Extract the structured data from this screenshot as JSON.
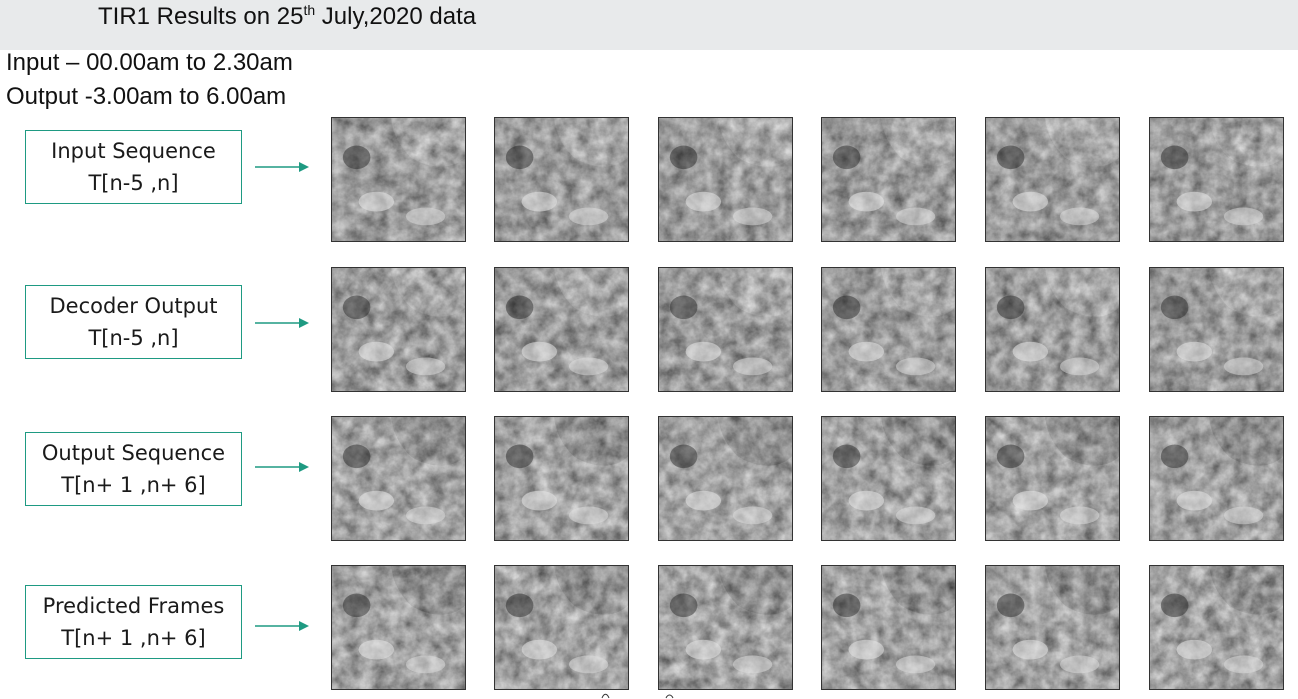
{
  "title": {
    "prefix": "TIR1 Results on 25",
    "sup": "th",
    "suffix": " July,2020 data"
  },
  "info": {
    "input_line": "Input – 00.00am to 2.30am",
    "output_line": "Output -3.00am to 6.00am"
  },
  "rows": [
    {
      "label_line1": "Input Sequence",
      "label_line2": "T[n-5 ,n]",
      "frame_names": [
        "input-frame-1",
        "input-frame-2",
        "input-frame-3",
        "input-frame-4",
        "input-frame-5",
        "input-frame-6"
      ]
    },
    {
      "label_line1": "Decoder Output",
      "label_line2": "T[n-5 ,n]",
      "frame_names": [
        "decoder-frame-1",
        "decoder-frame-2",
        "decoder-frame-3",
        "decoder-frame-4",
        "decoder-frame-5",
        "decoder-frame-6"
      ]
    },
    {
      "label_line1": "Output Sequence",
      "label_line2": "T[n+ 1 ,n+ 6]",
      "frame_names": [
        "output-frame-1",
        "output-frame-2",
        "output-frame-3",
        "output-frame-4",
        "output-frame-5",
        "output-frame-6"
      ]
    },
    {
      "label_line1": "Predicted Frames",
      "label_line2": "T[n+ 1 ,n+ 6]",
      "frame_names": [
        "predicted-frame-1",
        "predicted-frame-2",
        "predicted-frame-3",
        "predicted-frame-4",
        "predicted-frame-5",
        "predicted-frame-6"
      ]
    }
  ],
  "colors": {
    "accent": "#1e9a82",
    "title_bar": "#e8eaeb"
  },
  "icons": {
    "row_arrow": "arrow-right-icon"
  }
}
